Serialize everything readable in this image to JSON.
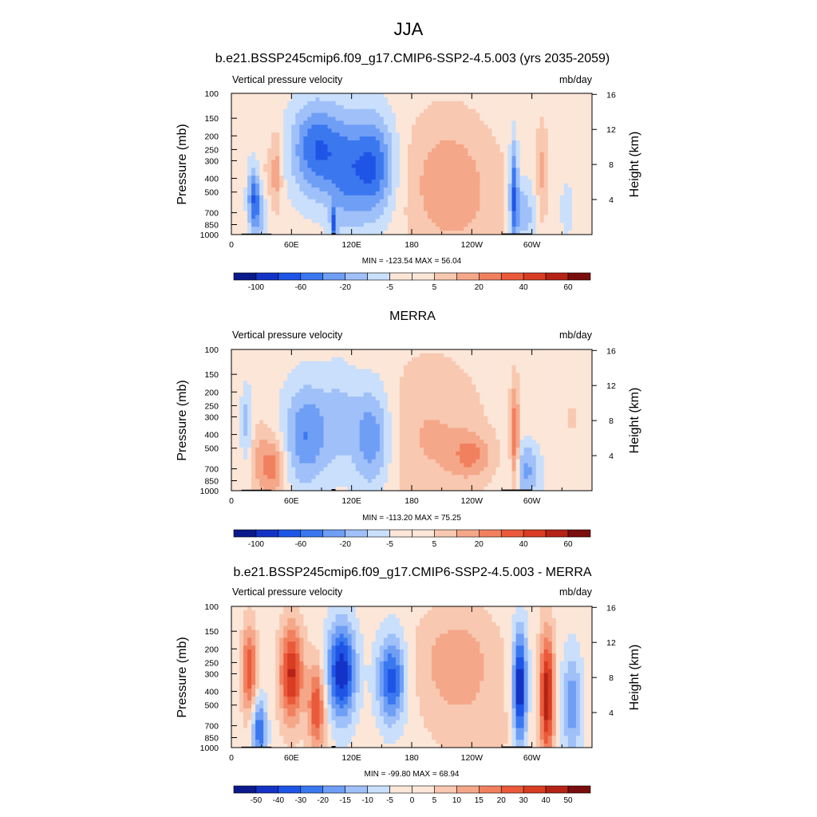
{
  "figure": {
    "title": "JJA"
  },
  "colormaps": {
    "abs": [
      "#0a1a8c",
      "#1433c6",
      "#1f55e6",
      "#3b78f0",
      "#6f9ef5",
      "#9fc0f8",
      "#c9dffb",
      "#fbe6d8",
      "#f8c8b0",
      "#f5a789",
      "#f1805f",
      "#ea5a3a",
      "#d83c22",
      "#b42316",
      "#7a0d0d"
    ],
    "diff": [
      "#0a1a8c",
      "#1433c6",
      "#1f55e6",
      "#3b78f0",
      "#6f9ef5",
      "#9fc0f8",
      "#c9dffb",
      "#fbe6d8",
      "#f8c8b0",
      "#f5a789",
      "#f1805f",
      "#ea5a3a",
      "#d83c22",
      "#b42316",
      "#7a0d0d"
    ]
  },
  "chart_data": [
    {
      "type": "heatmap",
      "title": "b.e21.BSSP245cmip6.f09_g17.CMIP6-SSP2-4.5.003 (yrs 2035-2059)",
      "left_label": "Vertical pressure velocity",
      "right_label": "mb/day",
      "ylabel": "Pressure (mb)",
      "ylabel_right": "Height (km)",
      "x_ticks": [
        "0",
        "60E",
        "120E",
        "180",
        "120W",
        "60W"
      ],
      "x_tick_lon": [
        0,
        60,
        120,
        180,
        240,
        300
      ],
      "xlim": [
        0,
        360
      ],
      "y_ticks": [
        "100",
        "150",
        "200",
        "250",
        "300",
        "400",
        "500",
        "700",
        "850",
        "1000"
      ],
      "y_tick_p": [
        100,
        150,
        200,
        250,
        300,
        400,
        500,
        700,
        850,
        1000
      ],
      "y_right_ticks": [
        "16",
        "12",
        "8",
        "4"
      ],
      "y_right_km": [
        16,
        12,
        8,
        4
      ],
      "ylim": [
        100,
        1000
      ],
      "scale": "log-pressure",
      "stats": "MIN = -123.54  MAX =  56.04",
      "colorbar_labels": [
        "-100",
        "-60",
        "-20",
        "-5",
        "5",
        "20",
        "40",
        "60"
      ],
      "colorbar_label_pos": [
        1,
        3,
        5,
        7,
        9,
        11,
        13,
        15
      ],
      "colorbar_nbox": 16,
      "map": "abs",
      "features": [
        {
          "lon": 22,
          "p": 520,
          "sx": 4,
          "sy": 0.35,
          "a": -55
        },
        {
          "lon": 28,
          "p": 700,
          "sx": 6,
          "sy": 0.3,
          "a": -40
        },
        {
          "lon": 45,
          "p": 350,
          "sx": 4,
          "sy": 0.45,
          "a": 35
        },
        {
          "lon": 35,
          "p": 450,
          "sx": 5,
          "sy": 0.5,
          "a": 12
        },
        {
          "lon": 85,
          "p": 250,
          "sx": 18,
          "sy": 0.55,
          "a": -70
        },
        {
          "lon": 140,
          "p": 330,
          "sx": 16,
          "sy": 0.6,
          "a": -75
        },
        {
          "lon": 112,
          "p": 400,
          "sx": 12,
          "sy": 0.7,
          "a": -35
        },
        {
          "lon": 102,
          "p": 850,
          "sx": 2,
          "sy": 0.2,
          "a": -60
        },
        {
          "lon": 215,
          "p": 430,
          "sx": 30,
          "sy": 0.8,
          "a": 32
        },
        {
          "lon": 282,
          "p": 500,
          "sx": 3,
          "sy": 0.6,
          "a": -70
        },
        {
          "lon": 292,
          "p": 700,
          "sx": 8,
          "sy": 0.4,
          "a": -40
        },
        {
          "lon": 310,
          "p": 350,
          "sx": 4,
          "sy": 0.55,
          "a": 25
        },
        {
          "lon": 335,
          "p": 650,
          "sx": 6,
          "sy": 0.4,
          "a": -15
        },
        {
          "lon": 255,
          "p": 650,
          "sx": 40,
          "sy": 0.7,
          "a": 8
        }
      ]
    },
    {
      "type": "heatmap",
      "title": "MERRA",
      "left_label": "Vertical pressure velocity",
      "right_label": "mb/day",
      "ylabel": "Pressure (mb)",
      "ylabel_right": "Height (km)",
      "x_ticks": [
        "0",
        "60E",
        "120E",
        "180",
        "120W",
        "60W"
      ],
      "x_tick_lon": [
        0,
        60,
        120,
        180,
        240,
        300
      ],
      "xlim": [
        0,
        360
      ],
      "y_ticks": [
        "100",
        "150",
        "200",
        "250",
        "300",
        "400",
        "500",
        "700",
        "850",
        "1000"
      ],
      "y_tick_p": [
        100,
        150,
        200,
        250,
        300,
        400,
        500,
        700,
        850,
        1000
      ],
      "y_right_ticks": [
        "16",
        "12",
        "8",
        "4"
      ],
      "y_right_km": [
        16,
        12,
        8,
        4
      ],
      "ylim": [
        100,
        1000
      ],
      "scale": "log-pressure",
      "stats": "MIN = -113.20  MAX =  75.25",
      "colorbar_labels": [
        "-100",
        "-60",
        "-20",
        "-5",
        "5",
        "20",
        "40",
        "60"
      ],
      "colorbar_label_pos": [
        1,
        3,
        5,
        7,
        9,
        11,
        13,
        15
      ],
      "colorbar_nbox": 16,
      "map": "abs",
      "features": [
        {
          "lon": 15,
          "p": 320,
          "sx": 4,
          "sy": 0.4,
          "a": -30
        },
        {
          "lon": 42,
          "p": 680,
          "sx": 8,
          "sy": 0.35,
          "a": 50
        },
        {
          "lon": 28,
          "p": 600,
          "sx": 6,
          "sy": 0.4,
          "a": 25
        },
        {
          "lon": 75,
          "p": 400,
          "sx": 16,
          "sy": 0.6,
          "a": -55
        },
        {
          "lon": 140,
          "p": 420,
          "sx": 14,
          "sy": 0.6,
          "a": -55
        },
        {
          "lon": 108,
          "p": 300,
          "sx": 12,
          "sy": 0.6,
          "a": -25
        },
        {
          "lon": 200,
          "p": 420,
          "sx": 35,
          "sy": 0.9,
          "a": 25
        },
        {
          "lon": 240,
          "p": 560,
          "sx": 14,
          "sy": 0.25,
          "a": 35
        },
        {
          "lon": 283,
          "p": 450,
          "sx": 3,
          "sy": 0.6,
          "a": 60
        },
        {
          "lon": 295,
          "p": 720,
          "sx": 10,
          "sy": 0.35,
          "a": -45
        },
        {
          "lon": 340,
          "p": 300,
          "sx": 30,
          "sy": 0.9,
          "a": 8
        }
      ]
    },
    {
      "type": "heatmap",
      "title": "b.e21.BSSP245cmip6.f09_g17.CMIP6-SSP2-4.5.003 - MERRA",
      "left_label": "Vertical pressure velocity",
      "right_label": "mb/day",
      "ylabel": "Pressure (mb)",
      "ylabel_right": "Height (km)",
      "x_ticks": [
        "0",
        "60E",
        "120E",
        "180",
        "120W",
        "60W"
      ],
      "x_tick_lon": [
        0,
        60,
        120,
        180,
        240,
        300
      ],
      "xlim": [
        0,
        360
      ],
      "y_ticks": [
        "100",
        "150",
        "200",
        "250",
        "300",
        "400",
        "500",
        "700",
        "850",
        "1000"
      ],
      "y_tick_p": [
        100,
        150,
        200,
        250,
        300,
        400,
        500,
        700,
        850,
        1000
      ],
      "y_right_ticks": [
        "16",
        "12",
        "8",
        "4"
      ],
      "y_right_km": [
        16,
        12,
        8,
        4
      ],
      "ylim": [
        100,
        1000
      ],
      "scale": "log-pressure",
      "stats": "MIN = -99.80  MAX =  68.94",
      "colorbar_labels": [
        "-50",
        "-40",
        "-30",
        "-20",
        "-15",
        "-10",
        "-5",
        "0",
        "5",
        "10",
        "15",
        "20",
        "30",
        "40",
        "50"
      ],
      "colorbar_label_pos": [
        1,
        2,
        3,
        4,
        5,
        6,
        7,
        8,
        9,
        10,
        11,
        12,
        13,
        14,
        15
      ],
      "colorbar_nbox": 16,
      "map": "diff",
      "features": [
        {
          "lon": 18,
          "p": 280,
          "sx": 5,
          "sy": 0.5,
          "a": 35
        },
        {
          "lon": 60,
          "p": 300,
          "sx": 8,
          "sy": 0.55,
          "a": 45
        },
        {
          "lon": 85,
          "p": 520,
          "sx": 6,
          "sy": 0.5,
          "a": 35
        },
        {
          "lon": 28,
          "p": 750,
          "sx": 5,
          "sy": 0.35,
          "a": -35
        },
        {
          "lon": 110,
          "p": 290,
          "sx": 10,
          "sy": 0.55,
          "a": -50
        },
        {
          "lon": 160,
          "p": 330,
          "sx": 10,
          "sy": 0.5,
          "a": -40
        },
        {
          "lon": 225,
          "p": 250,
          "sx": 28,
          "sy": 0.6,
          "a": 18
        },
        {
          "lon": 288,
          "p": 380,
          "sx": 5,
          "sy": 0.65,
          "a": -55
        },
        {
          "lon": 315,
          "p": 420,
          "sx": 5,
          "sy": 0.7,
          "a": 50
        },
        {
          "lon": 340,
          "p": 500,
          "sx": 7,
          "sy": 0.6,
          "a": -25
        },
        {
          "lon": 250,
          "p": 800,
          "sx": 40,
          "sy": 0.5,
          "a": 5
        }
      ]
    }
  ]
}
